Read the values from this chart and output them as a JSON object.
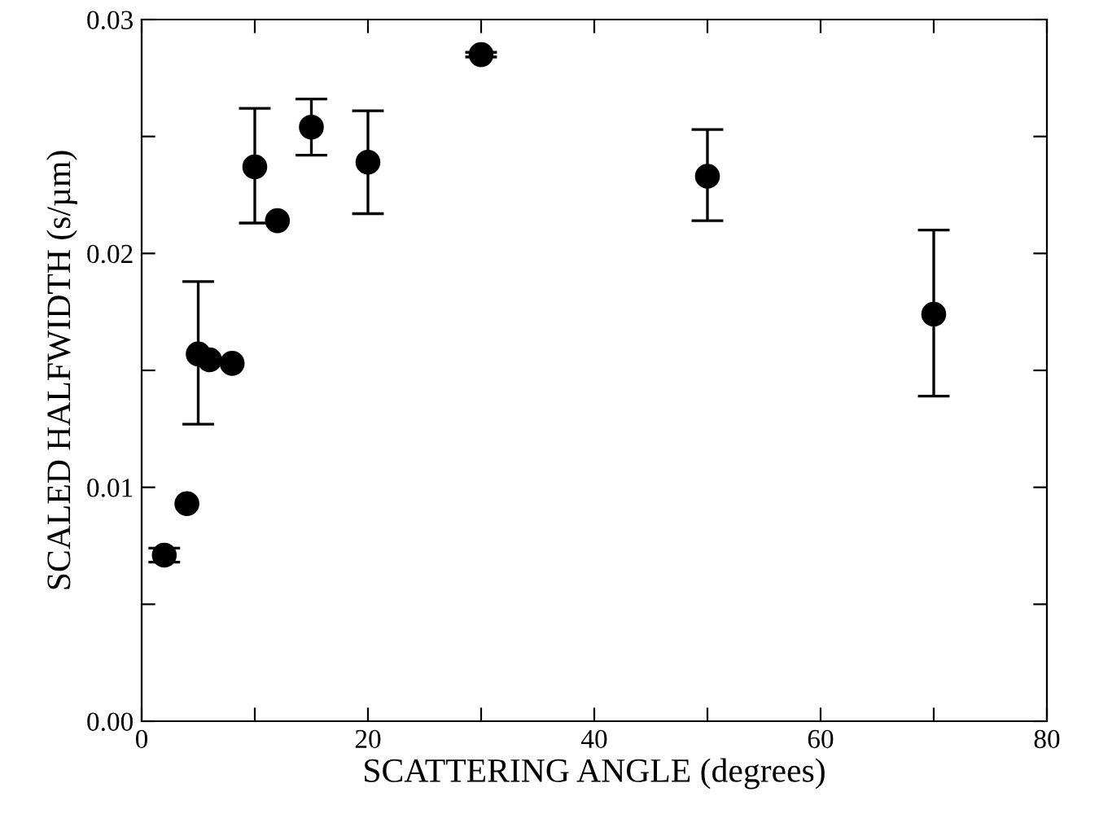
{
  "chart_data": {
    "type": "scatter",
    "xlabel": "SCATTERING ANGLE (degrees)",
    "ylabel": "SCALED HALFWIDTH (s/µm)",
    "x": [
      2,
      4,
      5,
      6,
      8,
      10,
      12,
      15,
      20,
      30,
      50,
      70
    ],
    "values": [
      0.0071,
      0.0093,
      0.0157,
      0.01545,
      0.0153,
      0.0237,
      0.0214,
      0.0254,
      0.0239,
      0.0285,
      0.0233,
      0.0174
    ],
    "errors": [
      [
        0.0068,
        0.0074
      ],
      null,
      [
        0.0127,
        0.0188
      ],
      null,
      null,
      [
        0.0213,
        0.0262
      ],
      null,
      [
        0.0242,
        0.0266
      ],
      [
        0.0217,
        0.0261
      ],
      [
        0.0284,
        0.0286
      ],
      [
        0.0214,
        0.0253
      ],
      [
        0.0139,
        0.021
      ]
    ],
    "color": "#000000",
    "marker": "circle",
    "grid": false,
    "legend": false,
    "xlim": [
      0,
      80
    ],
    "xticks": [
      0,
      {
        "value": 10,
        "label": null
      },
      20,
      {
        "value": 30,
        "label": null
      },
      40,
      {
        "value": 50,
        "label": null
      },
      60,
      {
        "value": 70,
        "label": null
      },
      80
    ],
    "ylim": [
      0,
      0.03
    ],
    "yticks": [
      {
        "value": 0,
        "label": "0.00"
      },
      {
        "value": 0.005,
        "label": null
      },
      {
        "value": 0.01,
        "label": "0.01"
      },
      {
        "value": 0.015,
        "label": null
      },
      {
        "value": 0.02,
        "label": "0.02"
      },
      {
        "value": 0.025,
        "label": null
      },
      {
        "value": 0.03,
        "label": "0.03"
      }
    ]
  }
}
